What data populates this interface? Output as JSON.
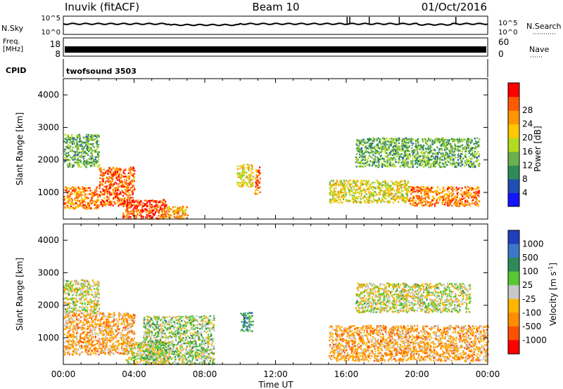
{
  "header": {
    "station": "Inuvik (fitACF)",
    "beam": "Beam 10",
    "date": "01/Oct/2016"
  },
  "nsky_panel": {
    "left_label": "N.Sky",
    "left_ticks": [
      "10^5",
      "10^0"
    ],
    "right_ticks": [
      "10^5",
      "10^0"
    ],
    "right_label": "N.Search"
  },
  "freq_panel": {
    "left_label_line1": "Freq.",
    "left_label_line2": "[MHz]",
    "left_ticks": [
      "18",
      "8"
    ],
    "right_ticks": [
      "60",
      "0"
    ],
    "right_label": "Nave"
  },
  "cpid_panel": {
    "label": "CPID",
    "program": "twofsound 3503"
  },
  "time_axis": {
    "ticks": [
      "00:00",
      "04:00",
      "08:00",
      "12:00",
      "16:00",
      "20:00",
      "00:00"
    ],
    "label": "Time UT"
  },
  "power_panel": {
    "ylabel": "Slant Range [km]",
    "yticks": [
      "1000",
      "2000",
      "3000",
      "4000"
    ],
    "cbar_label": "Power [dB]",
    "cbar_ticks": [
      "4",
      "8",
      "12",
      "16",
      "20",
      "24",
      "28"
    ],
    "colors": [
      "#1414ff",
      "#1e50b4",
      "#2e8b57",
      "#6ab04c",
      "#b4dc1e",
      "#ffc800",
      "#ff9600",
      "#ff5a00",
      "#ff0000"
    ]
  },
  "velocity_panel": {
    "ylabel": "Slant Range [km]",
    "yticks": [
      "1000",
      "2000",
      "3000",
      "4000"
    ],
    "cbar_label": "Velocity [m s^-1]",
    "cbar_ticks": [
      "1000",
      "500",
      "100",
      "25",
      "-25",
      "-100",
      "-500",
      "-1000"
    ],
    "colors": [
      "#2040c0",
      "#3c78c8",
      "#2e8b57",
      "#5ac832",
      "#c8c8c8",
      "#ffb400",
      "#ff8c00",
      "#ff5000",
      "#ff0000"
    ]
  },
  "chart_data": {
    "type": "heatmap",
    "title": "Inuvik (fitACF)  Beam 10  01/Oct/2016",
    "xlabel": "Time UT",
    "ylabel": "Slant Range [km]",
    "xlim": [
      0,
      24
    ],
    "ylim": [
      180,
      4500
    ],
    "x_unit": "hours UT",
    "series": [
      {
        "name": "Power [dB]",
        "zlim": [
          0,
          32
        ],
        "scatter_regions": [
          {
            "t": [
              0.0,
              2.0
            ],
            "range": [
              500,
              1200
            ],
            "value": 24
          },
          {
            "t": [
              2.0,
              4.0
            ],
            "range": [
              600,
              1800
            ],
            "value": 26
          },
          {
            "t": [
              3.3,
              5.8
            ],
            "range": [
              200,
              800
            ],
            "value": 28
          },
          {
            "t": [
              5.5,
              7.0
            ],
            "range": [
              200,
              600
            ],
            "value": 22
          },
          {
            "t": [
              0.0,
              2.0
            ],
            "range": [
              1800,
              2800
            ],
            "value": 12
          },
          {
            "t": [
              9.8,
              10.7
            ],
            "range": [
              1200,
              1900
            ],
            "value": 18
          },
          {
            "t": [
              10.8,
              11.1
            ],
            "range": [
              900,
              1800
            ],
            "value": 26
          },
          {
            "t": [
              15.0,
              19.5
            ],
            "range": [
              700,
              1400
            ],
            "value": 18
          },
          {
            "t": [
              19.5,
              23.5
            ],
            "range": [
              600,
              1200
            ],
            "value": 24
          },
          {
            "t": [
              16.5,
              23.5
            ],
            "range": [
              1800,
              2700
            ],
            "value": 12
          }
        ]
      },
      {
        "name": "Velocity [m s^-1]",
        "zlim": [
          -1000,
          1000
        ],
        "scatter_regions": [
          {
            "t": [
              0.0,
              4.0
            ],
            "range": [
              500,
              1800
            ],
            "value": -300
          },
          {
            "t": [
              3.5,
              6.0
            ],
            "range": [
              200,
              900
            ],
            "value": 0
          },
          {
            "t": [
              0.0,
              2.0
            ],
            "range": [
              1800,
              2800
            ],
            "value": 0
          },
          {
            "t": [
              4.5,
              8.5
            ],
            "range": [
              200,
              1700
            ],
            "value": 100
          },
          {
            "t": [
              10.0,
              10.7
            ],
            "range": [
              1200,
              1800
            ],
            "value": 500
          },
          {
            "t": [
              15.0,
              24.0
            ],
            "range": [
              300,
              1400
            ],
            "value": -300
          },
          {
            "t": [
              16.5,
              23.0
            ],
            "range": [
              1800,
              2700
            ],
            "value": 0
          }
        ]
      }
    ]
  }
}
